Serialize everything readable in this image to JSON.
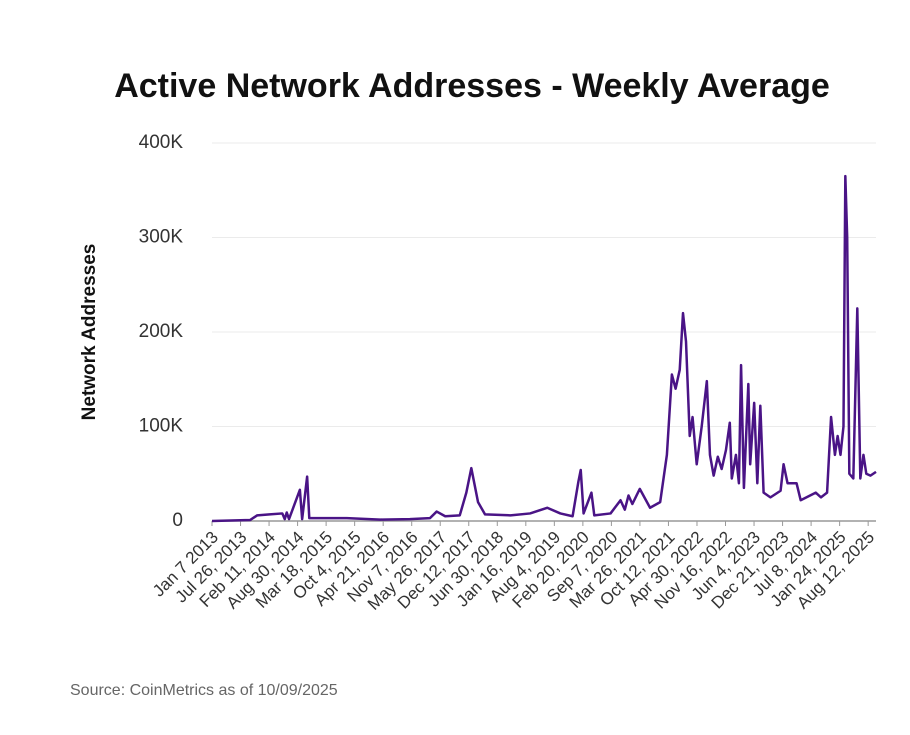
{
  "chart_data": {
    "type": "line",
    "title": "Active Network Addresses - Weekly Average",
    "ylabel": "Network Addresses",
    "source": "Source: CoinMetrics as of 10/09/2025",
    "color": "#4a1486",
    "grid": true,
    "x": [
      "2013-01-07",
      "2013-10-01",
      "2013-11-20",
      "2014-02-15",
      "2014-05-15",
      "2014-06-01",
      "2014-06-15",
      "2014-07-01",
      "2014-09-15",
      "2014-10-01",
      "2014-11-05",
      "2014-11-20",
      "2015-08-10",
      "2016-04-01",
      "2016-10-25",
      "2017-03-15",
      "2017-05-01",
      "2017-06-30",
      "2017-10-10",
      "2017-11-25",
      "2017-12-30",
      "2018-02-15",
      "2018-04-05",
      "2018-09-30",
      "2019-02-15",
      "2019-06-15",
      "2019-09-15",
      "2019-12-10",
      "2020-01-20",
      "2020-02-05",
      "2020-02-25",
      "2020-04-20",
      "2020-05-10",
      "2020-09-01",
      "2020-11-10",
      "2020-12-10",
      "2021-01-05",
      "2021-02-01",
      "2021-03-25",
      "2021-06-05",
      "2021-08-15",
      "2021-10-01",
      "2021-11-05",
      "2021-12-01",
      "2021-12-30",
      "2022-01-22",
      "2022-02-12",
      "2022-03-10",
      "2022-03-30",
      "2022-04-28",
      "2022-06-02",
      "2022-07-08",
      "2022-07-30",
      "2022-08-25",
      "2022-09-23",
      "2022-10-20",
      "2022-11-19",
      "2022-12-16",
      "2022-12-30",
      "2023-01-28",
      "2023-02-18",
      "2023-03-05",
      "2023-03-25",
      "2023-04-25",
      "2023-05-08",
      "2023-06-05",
      "2023-06-27",
      "2023-07-18",
      "2023-08-10",
      "2023-09-27",
      "2023-12-07",
      "2023-12-28",
      "2024-01-25",
      "2024-03-28",
      "2024-04-26",
      "2024-08-10",
      "2024-09-15",
      "2024-10-28",
      "2024-11-25",
      "2024-12-22",
      "2025-01-10",
      "2025-01-30",
      "2025-02-20",
      "2025-03-05",
      "2025-03-18",
      "2025-04-02",
      "2025-04-30",
      "2025-05-28",
      "2025-06-18",
      "2025-07-10",
      "2025-07-30",
      "2025-08-28",
      "2025-10-06"
    ],
    "values": [
      0,
      1000,
      6000,
      7000,
      8000,
      2000,
      9000,
      2000,
      33000,
      2000,
      47000,
      3000,
      3000,
      1500,
      2000,
      3000,
      10000,
      5000,
      6000,
      30000,
      56000,
      20000,
      7000,
      6000,
      8000,
      14000,
      8000,
      5000,
      42000,
      54000,
      8000,
      30000,
      6000,
      8000,
      22000,
      12000,
      27000,
      18000,
      34000,
      14000,
      20000,
      70000,
      155000,
      140000,
      160000,
      220000,
      190000,
      90000,
      110000,
      60000,
      100000,
      148000,
      70000,
      48000,
      68000,
      55000,
      75000,
      104000,
      45000,
      70000,
      40000,
      165000,
      35000,
      145000,
      60000,
      125000,
      40000,
      122000,
      30000,
      25000,
      32000,
      60000,
      40000,
      40000,
      22000,
      30000,
      25000,
      30000,
      110000,
      70000,
      90000,
      70000,
      100000,
      365000,
      300000,
      50000,
      45000,
      225000,
      45000,
      70000,
      50000,
      48000,
      52000
    ],
    "xlim": [
      "2013-01-07",
      "2025-10-06"
    ],
    "xticks": [
      {
        "value": "2013-01-07",
        "label": "Jan 7 2013"
      },
      {
        "value": "2013-07-26",
        "label": "Jul 26, 2013"
      },
      {
        "value": "2014-02-11",
        "label": "Feb 11, 2014"
      },
      {
        "value": "2014-08-30",
        "label": "Aug 30, 2014"
      },
      {
        "value": "2015-03-18",
        "label": "Mar 18, 2015"
      },
      {
        "value": "2015-10-04",
        "label": "Oct 4, 2015"
      },
      {
        "value": "2016-04-21",
        "label": "Apr 21, 2016"
      },
      {
        "value": "2016-11-07",
        "label": "Nov 7, 2016"
      },
      {
        "value": "2017-05-26",
        "label": "May 26, 2017"
      },
      {
        "value": "2017-12-12",
        "label": "Dec 12, 2017"
      },
      {
        "value": "2018-06-30",
        "label": "Jun 30, 2018"
      },
      {
        "value": "2019-01-16",
        "label": "Jan 16, 2019"
      },
      {
        "value": "2019-08-04",
        "label": "Aug 4, 2019"
      },
      {
        "value": "2020-02-20",
        "label": "Feb 20, 2020"
      },
      {
        "value": "2020-09-07",
        "label": "Sep 7, 2020"
      },
      {
        "value": "2021-03-26",
        "label": "Mar 26, 2021"
      },
      {
        "value": "2021-10-12",
        "label": "Oct 12, 2021"
      },
      {
        "value": "2022-04-30",
        "label": "Apr 30, 2022"
      },
      {
        "value": "2022-11-16",
        "label": "Nov 16, 2022"
      },
      {
        "value": "2023-06-04",
        "label": "Jun 4, 2023"
      },
      {
        "value": "2023-12-21",
        "label": "Dec 21, 2023"
      },
      {
        "value": "2024-07-08",
        "label": "Jul 8, 2024"
      },
      {
        "value": "2025-01-24",
        "label": "Jan 24, 2025"
      },
      {
        "value": "2025-08-12",
        "label": "Aug 12, 2025"
      }
    ],
    "ylim": [
      0,
      400000
    ],
    "yticks": [
      0,
      {
        "value": 100000,
        "label": "100K"
      },
      {
        "value": 200000,
        "label": "200K"
      },
      {
        "value": 300000,
        "label": "300K"
      },
      {
        "value": 400000,
        "label": "400K"
      }
    ]
  }
}
